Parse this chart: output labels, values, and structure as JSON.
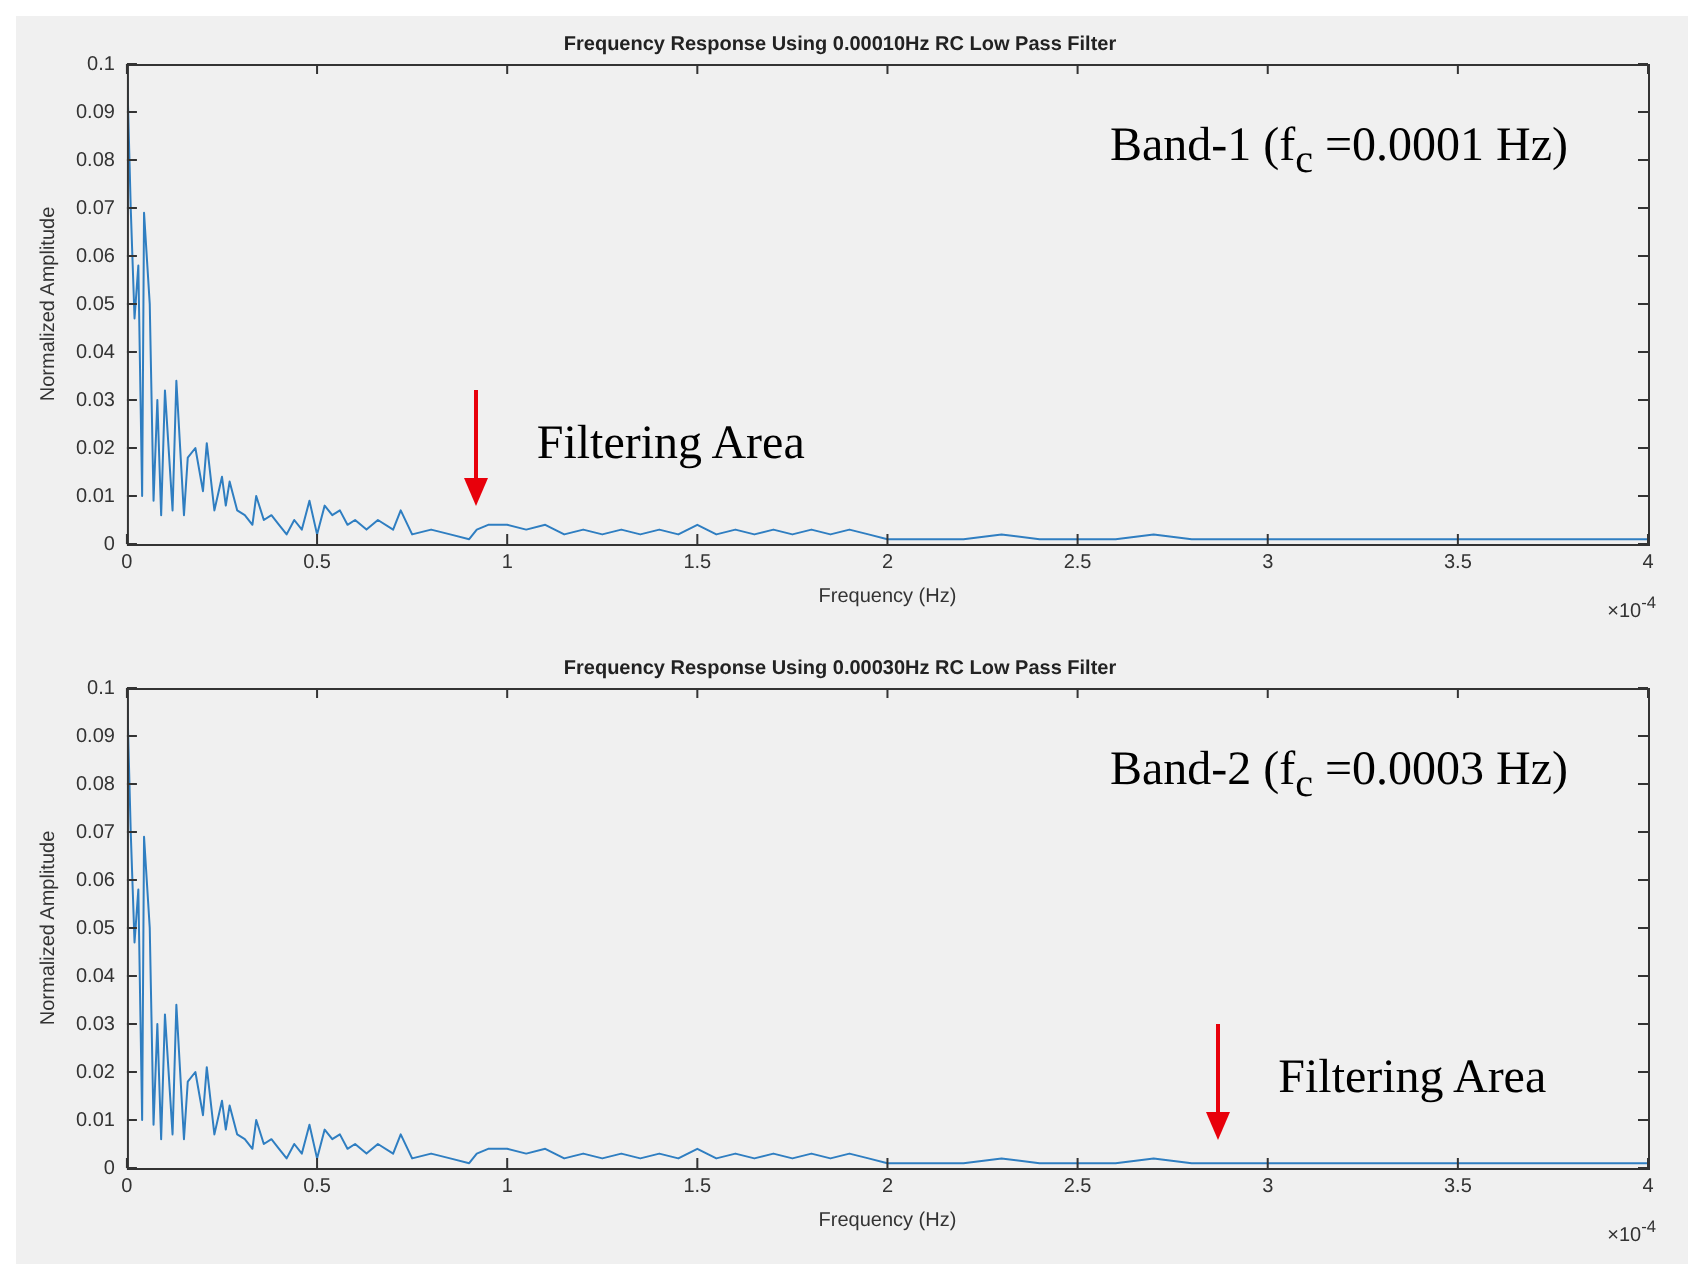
{
  "chart_data": [
    {
      "type": "line",
      "title": "Frequency Response Using 0.00010Hz RC Low Pass Filter",
      "xlabel": "Frequency (Hz)",
      "ylabel": "Normalized Amplitude",
      "x": [
        0,
        0.01,
        0.02,
        0.03,
        0.04,
        0.045,
        0.06,
        0.07,
        0.08,
        0.09,
        0.1,
        0.12,
        0.13,
        0.15,
        0.16,
        0.18,
        0.2,
        0.21,
        0.23,
        0.25,
        0.26,
        0.27,
        0.29,
        0.31,
        0.33,
        0.34,
        0.36,
        0.38,
        0.4,
        0.42,
        0.44,
        0.46,
        0.48,
        0.5,
        0.52,
        0.54,
        0.56,
        0.58,
        0.6,
        0.63,
        0.66,
        0.7,
        0.72,
        0.75,
        0.8,
        0.85,
        0.9,
        0.92,
        0.95,
        1.0,
        1.05,
        1.1,
        1.15,
        1.2,
        1.25,
        1.3,
        1.35,
        1.4,
        1.45,
        1.5,
        1.55,
        1.6,
        1.65,
        1.7,
        1.75,
        1.8,
        1.85,
        1.9,
        1.95,
        2.0,
        2.1,
        2.2,
        2.3,
        2.4,
        2.5,
        2.6,
        2.7,
        2.8,
        2.9,
        3.0,
        3.1,
        3.2,
        3.3,
        3.4,
        3.5,
        3.6,
        3.7,
        3.8,
        3.9,
        4.0
      ],
      "series": [
        {
          "color": "#2f7ec1",
          "values": [
            0.1,
            0.07,
            0.047,
            0.058,
            0.01,
            0.069,
            0.05,
            0.009,
            0.03,
            0.006,
            0.032,
            0.007,
            0.034,
            0.006,
            0.018,
            0.02,
            0.011,
            0.021,
            0.007,
            0.014,
            0.008,
            0.013,
            0.007,
            0.006,
            0.004,
            0.01,
            0.005,
            0.006,
            0.004,
            0.002,
            0.005,
            0.003,
            0.009,
            0.002,
            0.008,
            0.006,
            0.007,
            0.004,
            0.005,
            0.003,
            0.005,
            0.003,
            0.007,
            0.002,
            0.003,
            0.002,
            0.001,
            0.003,
            0.004,
            0.004,
            0.003,
            0.004,
            0.002,
            0.003,
            0.002,
            0.003,
            0.002,
            0.003,
            0.002,
            0.004,
            0.002,
            0.003,
            0.002,
            0.003,
            0.002,
            0.003,
            0.002,
            0.003,
            0.002,
            0.001,
            0.001,
            0.001,
            0.002,
            0.001,
            0.001,
            0.001,
            0.002,
            0.001,
            0.001,
            0.001,
            0.001,
            0.001,
            0.001,
            0.001,
            0.001,
            0.001,
            0.001,
            0.001,
            0.001,
            0.001
          ]
        }
      ],
      "xlim": [
        0,
        4
      ],
      "xticks": [
        0,
        0.5,
        1,
        1.5,
        2,
        2.5,
        3,
        3.5,
        4
      ],
      "ylim": [
        0,
        0.1
      ],
      "yticks": [
        0,
        0.01,
        0.02,
        0.03,
        0.04,
        0.05,
        0.06,
        0.07,
        0.08,
        0.09,
        0.1
      ],
      "grid": false,
      "marker": "none",
      "line_style": "solid",
      "annotations": [
        "Band-1 (f$_{c}$ =0.0001 Hz)",
        {
          "text": "Filtering Area",
          "x": 0.92,
          "y": 0.003
        },
        "×10$^{-4}$"
      ]
    },
    {
      "type": "line",
      "title": "Frequency Response Using 0.00030Hz RC Low Pass Filter",
      "xlabel": "Frequency (Hz)",
      "ylabel": "Normalized Amplitude",
      "x": [
        0,
        0.01,
        0.02,
        0.03,
        0.04,
        0.045,
        0.06,
        0.07,
        0.08,
        0.09,
        0.1,
        0.12,
        0.13,
        0.15,
        0.16,
        0.18,
        0.2,
        0.21,
        0.23,
        0.25,
        0.26,
        0.27,
        0.29,
        0.31,
        0.33,
        0.34,
        0.36,
        0.38,
        0.4,
        0.42,
        0.44,
        0.46,
        0.48,
        0.5,
        0.52,
        0.54,
        0.56,
        0.58,
        0.6,
        0.63,
        0.66,
        0.7,
        0.72,
        0.75,
        0.8,
        0.85,
        0.9,
        0.92,
        0.95,
        1.0,
        1.05,
        1.1,
        1.15,
        1.2,
        1.25,
        1.3,
        1.35,
        1.4,
        1.45,
        1.5,
        1.55,
        1.6,
        1.65,
        1.7,
        1.75,
        1.8,
        1.85,
        1.9,
        1.95,
        2.0,
        2.1,
        2.2,
        2.3,
        2.4,
        2.5,
        2.6,
        2.7,
        2.8,
        2.9,
        3.0,
        3.1,
        3.2,
        3.3,
        3.4,
        3.5,
        3.6,
        3.7,
        3.8,
        3.9,
        4.0
      ],
      "series": [
        {
          "color": "#2f7ec1",
          "values": [
            0.1,
            0.07,
            0.047,
            0.058,
            0.01,
            0.069,
            0.05,
            0.009,
            0.03,
            0.006,
            0.032,
            0.007,
            0.034,
            0.006,
            0.018,
            0.02,
            0.011,
            0.021,
            0.007,
            0.014,
            0.008,
            0.013,
            0.007,
            0.006,
            0.004,
            0.01,
            0.005,
            0.006,
            0.004,
            0.002,
            0.005,
            0.003,
            0.009,
            0.002,
            0.008,
            0.006,
            0.007,
            0.004,
            0.005,
            0.003,
            0.005,
            0.003,
            0.007,
            0.002,
            0.003,
            0.002,
            0.001,
            0.003,
            0.004,
            0.004,
            0.003,
            0.004,
            0.002,
            0.003,
            0.002,
            0.003,
            0.002,
            0.003,
            0.002,
            0.004,
            0.002,
            0.003,
            0.002,
            0.003,
            0.002,
            0.003,
            0.002,
            0.003,
            0.002,
            0.001,
            0.001,
            0.001,
            0.002,
            0.001,
            0.001,
            0.001,
            0.002,
            0.001,
            0.001,
            0.001,
            0.001,
            0.001,
            0.001,
            0.001,
            0.001,
            0.001,
            0.001,
            0.001,
            0.001,
            0.001
          ]
        }
      ],
      "xlim": [
        0,
        4
      ],
      "xticks": [
        0,
        0.5,
        1,
        1.5,
        2,
        2.5,
        3,
        3.5,
        4
      ],
      "ylim": [
        0,
        0.1
      ],
      "yticks": [
        0,
        0.01,
        0.02,
        0.03,
        0.04,
        0.05,
        0.06,
        0.07,
        0.08,
        0.09,
        0.1
      ],
      "grid": false,
      "marker": "none",
      "line_style": "solid",
      "annotations": [
        "Band-2 (f$_{c}$ =0.0003 Hz)",
        {
          "text": "Filtering Area",
          "x": 2.87,
          "y": 0.001
        },
        "×10$^{-4}$"
      ]
    }
  ]
}
